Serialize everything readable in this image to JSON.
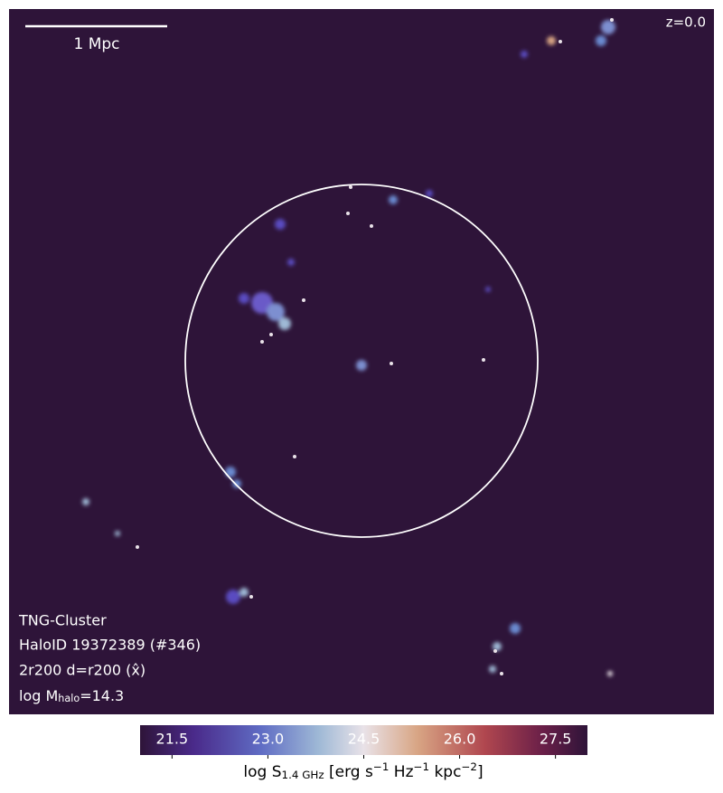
{
  "scale_bar": {
    "label": "1 Mpc"
  },
  "redshift": "z=0.0",
  "info": {
    "simulation": "TNG-Cluster",
    "halo": "HaloID 19372389 (#346)",
    "projection": "2r200 d=r200 (x̂)",
    "mass": [
      {
        "text": "log M"
      },
      {
        "sub": "halo"
      },
      {
        "text": "=14.3"
      }
    ]
  },
  "colorbar": {
    "range": [
      21,
      28
    ],
    "ticks": [
      21.5,
      {
        "value": 23,
        "label": "23.0"
      },
      24.5,
      {
        "value": 26,
        "label": "26.0"
      },
      27.5
    ],
    "label": [
      {
        "text": "log S"
      },
      {
        "sub": "1.4 GHz"
      },
      {
        "text": " [erg s"
      },
      {
        "sup": "−1"
      },
      {
        "text": " Hz"
      },
      {
        "sup": "−1"
      },
      {
        "text": " kpc"
      },
      {
        "sup": "−2"
      },
      {
        "text": "]"
      }
    ]
  }
}
